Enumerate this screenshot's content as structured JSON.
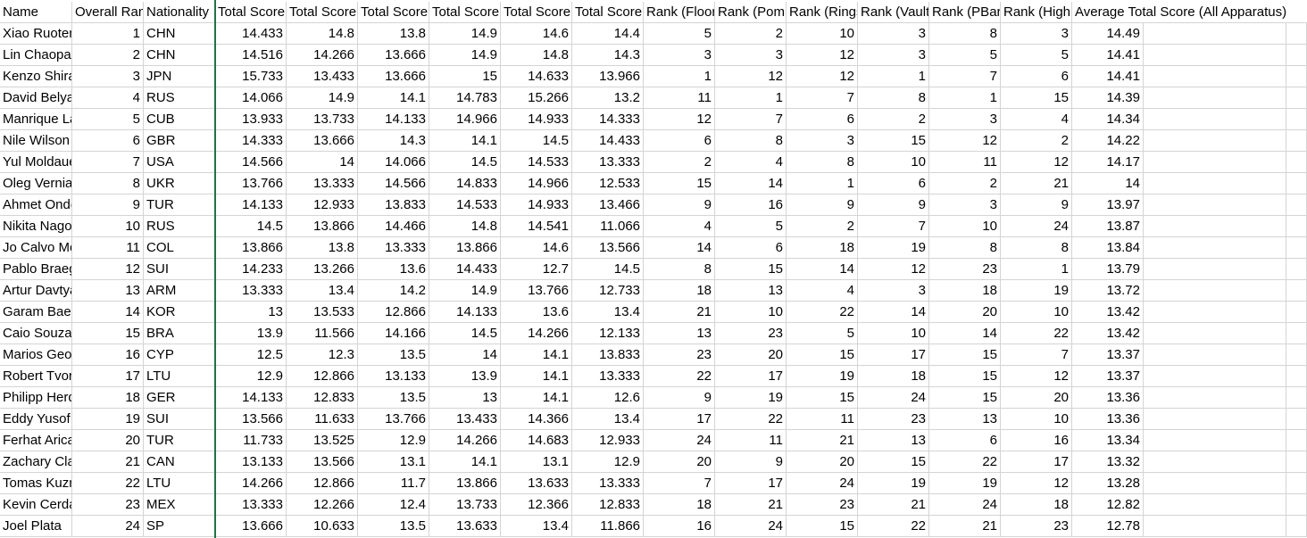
{
  "headers": [
    "Name",
    "Overall Rank",
    "Nationality",
    "Total Score (Floor)",
    "Total Score (Pommel)",
    "Total Score (Rings)",
    "Total Score (Vault)",
    "Total Score (PBars)",
    "Total Score (High Bar)",
    "Rank (Floor)",
    "Rank (Pommel)",
    "Rank (Rings)",
    "Rank (Vault)",
    "Rank (PBars)",
    "Rank (High Bar)",
    "Average Total Score (All Apparatus)"
  ],
  "rows": [
    [
      "Xiao Ruoteng",
      "1",
      "CHN",
      "14.433",
      "14.8",
      "13.8",
      "14.9",
      "14.6",
      "14.4",
      "5",
      "2",
      "10",
      "3",
      "8",
      "3",
      "14.49"
    ],
    [
      "Lin Chaopan",
      "2",
      "CHN",
      "14.516",
      "14.266",
      "13.666",
      "14.9",
      "14.8",
      "14.3",
      "3",
      "3",
      "12",
      "3",
      "5",
      "5",
      "14.41"
    ],
    [
      "Kenzo Shirai",
      "3",
      "JPN",
      "15.733",
      "13.433",
      "13.666",
      "15",
      "14.633",
      "13.966",
      "1",
      "12",
      "12",
      "1",
      "7",
      "6",
      "14.41"
    ],
    [
      "David Belyavskiy",
      "4",
      "RUS",
      "14.066",
      "14.9",
      "14.1",
      "14.783",
      "15.266",
      "13.2",
      "11",
      "1",
      "7",
      "8",
      "1",
      "15",
      "14.39"
    ],
    [
      "Manrique Larduet",
      "5",
      "CUB",
      "13.933",
      "13.733",
      "14.133",
      "14.966",
      "14.933",
      "14.333",
      "12",
      "7",
      "6",
      "2",
      "3",
      "4",
      "14.34"
    ],
    [
      "Nile Wilson",
      "6",
      "GBR",
      "14.333",
      "13.666",
      "14.3",
      "14.1",
      "14.5",
      "14.433",
      "6",
      "8",
      "3",
      "15",
      "12",
      "2",
      "14.22"
    ],
    [
      "Yul Moldauer",
      "7",
      "USA",
      "14.566",
      "14",
      "14.066",
      "14.5",
      "14.533",
      "13.333",
      "2",
      "4",
      "8",
      "10",
      "11",
      "12",
      "14.17"
    ],
    [
      "Oleg Verniaiev",
      "8",
      "UKR",
      "13.766",
      "13.333",
      "14.566",
      "14.833",
      "14.966",
      "12.533",
      "15",
      "14",
      "1",
      "6",
      "2",
      "21",
      "14"
    ],
    [
      "Ahmet Onder",
      "9",
      "TUR",
      "14.133",
      "12.933",
      "13.833",
      "14.533",
      "14.933",
      "13.466",
      "9",
      "16",
      "9",
      "9",
      "3",
      "9",
      "13.97"
    ],
    [
      "Nikita Nagornyy",
      "10",
      "RUS",
      "14.5",
      "13.866",
      "14.466",
      "14.8",
      "14.541",
      "11.066",
      "4",
      "5",
      "2",
      "7",
      "10",
      "24",
      "13.87"
    ],
    [
      "Jo Calvo Moreno",
      "11",
      "COL",
      "13.866",
      "13.8",
      "13.333",
      "13.866",
      "14.6",
      "13.566",
      "14",
      "6",
      "18",
      "19",
      "8",
      "8",
      "13.84"
    ],
    [
      "Pablo Braegger",
      "12",
      "SUI",
      "14.233",
      "13.266",
      "13.6",
      "14.433",
      "12.7",
      "14.5",
      "8",
      "15",
      "14",
      "12",
      "23",
      "1",
      "13.79"
    ],
    [
      "Artur Davtyan",
      "13",
      "ARM",
      "13.333",
      "13.4",
      "14.2",
      "14.9",
      "13.766",
      "12.733",
      "18",
      "13",
      "4",
      "3",
      "18",
      "19",
      "13.72"
    ],
    [
      "Garam Bae",
      "14",
      "KOR",
      "13",
      "13.533",
      "12.866",
      "14.133",
      "13.6",
      "13.4",
      "21",
      "10",
      "22",
      "14",
      "20",
      "10",
      "13.42"
    ],
    [
      "Caio Souza",
      "15",
      "BRA",
      "13.9",
      "11.566",
      "14.166",
      "14.5",
      "14.266",
      "12.133",
      "13",
      "23",
      "5",
      "10",
      "14",
      "22",
      "13.42"
    ],
    [
      "Marios Georgiou",
      "16",
      "CYP",
      "12.5",
      "12.3",
      "13.5",
      "14",
      "14.1",
      "13.833",
      "23",
      "20",
      "15",
      "17",
      "15",
      "7",
      "13.37"
    ],
    [
      "Robert Tvorogal",
      "17",
      "LTU",
      "12.9",
      "12.866",
      "13.133",
      "13.9",
      "14.1",
      "13.333",
      "22",
      "17",
      "19",
      "18",
      "15",
      "12",
      "13.37"
    ],
    [
      "Philipp Herder",
      "18",
      "GER",
      "14.133",
      "12.833",
      "13.5",
      "13",
      "14.1",
      "12.6",
      "9",
      "19",
      "15",
      "24",
      "15",
      "20",
      "13.36"
    ],
    [
      "Eddy Yusof",
      "19",
      "SUI",
      "13.566",
      "11.633",
      "13.766",
      "13.433",
      "14.366",
      "13.4",
      "17",
      "22",
      "11",
      "23",
      "13",
      "10",
      "13.36"
    ],
    [
      "Ferhat Arican",
      "20",
      "TUR",
      "11.733",
      "13.525",
      "12.9",
      "14.266",
      "14.683",
      "12.933",
      "24",
      "11",
      "21",
      "13",
      "6",
      "16",
      "13.34"
    ],
    [
      "Zachary Clay",
      "21",
      "CAN",
      "13.133",
      "13.566",
      "13.1",
      "14.1",
      "13.1",
      "12.9",
      "20",
      "9",
      "20",
      "15",
      "22",
      "17",
      "13.32"
    ],
    [
      "Tomas Kuzmickas",
      "22",
      "LTU",
      "14.266",
      "12.866",
      "11.7",
      "13.866",
      "13.633",
      "13.333",
      "7",
      "17",
      "24",
      "19",
      "19",
      "12",
      "13.28"
    ],
    [
      "Kevin Cerda",
      "23",
      "MEX",
      "13.333",
      "12.266",
      "12.4",
      "13.733",
      "12.366",
      "12.833",
      "18",
      "21",
      "23",
      "21",
      "24",
      "18",
      "12.82"
    ],
    [
      "Joel Plata",
      "24",
      "SP",
      "13.666",
      "10.633",
      "13.5",
      "13.633",
      "13.4",
      "11.866",
      "16",
      "24",
      "15",
      "22",
      "21",
      "23",
      "12.78"
    ]
  ]
}
